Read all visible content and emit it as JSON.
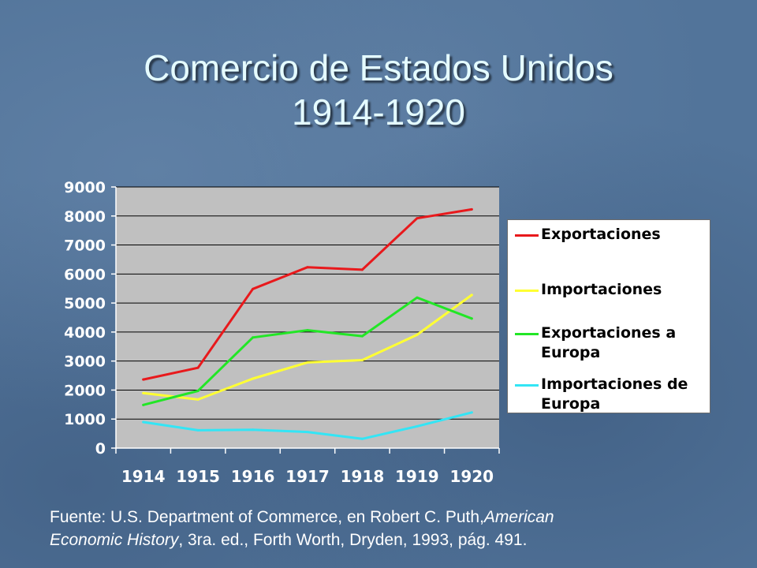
{
  "slide": {
    "title_line1": "Comercio de Estados Unidos",
    "title_line2": "1914-1920",
    "source_prefix": "Fuente:  U.S. Department of Commerce, en Robert C. Puth,",
    "source_italic1": "American",
    "source_italic2": "Economic History",
    "source_suffix": ", 3ra. ed., Forth Worth, Dryden, 1993, pág. 491."
  },
  "colors": {
    "plot_bg": "#c0c0c0",
    "grid": "#000000",
    "axis_text": "#ffffff",
    "title_text": "#e4fbff"
  },
  "chart_data": {
    "type": "line",
    "x": [
      "1914",
      "1915",
      "1916",
      "1917",
      "1918",
      "1919",
      "1920"
    ],
    "ylim": [
      0,
      9000
    ],
    "yticks": [
      0,
      1000,
      2000,
      3000,
      4000,
      5000,
      6000,
      7000,
      8000,
      9000
    ],
    "grid": true,
    "legend_position": "right",
    "series": [
      {
        "name": "Exportaciones",
        "color": "#e8191c",
        "values": [
          2364,
          2769,
          5483,
          6234,
          6149,
          7920,
          8228
        ]
      },
      {
        "name": "Importaciones",
        "color": "#ffff33",
        "values": [
          1894,
          1674,
          2392,
          2952,
          3031,
          3904,
          5278
        ]
      },
      {
        "name": "Exportaciones a Europa",
        "color": "#22e626",
        "values": [
          1486,
          1971,
          3813,
          4062,
          3859,
          5188,
          4466
        ]
      },
      {
        "name": "Importaciones de Europa",
        "color": "#33e5f5",
        "values": [
          896,
          614,
          633,
          554,
          319,
          750,
          1228
        ]
      }
    ]
  }
}
